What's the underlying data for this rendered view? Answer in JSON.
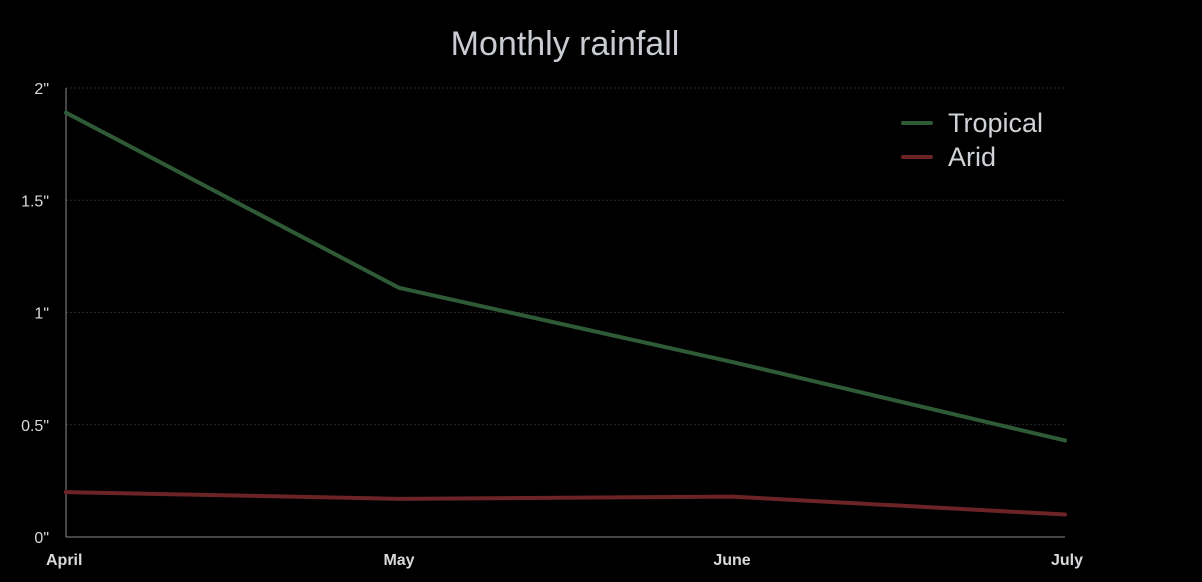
{
  "chart_data": {
    "type": "line",
    "title": "Monthly rainfall",
    "x": [
      "April",
      "May",
      "June",
      "July"
    ],
    "y_ticks": [
      {
        "value": 0,
        "label": "0\""
      },
      {
        "value": 0.5,
        "label": "0.5\""
      },
      {
        "value": 1,
        "label": "1\""
      },
      {
        "value": 1.5,
        "label": "1.5\""
      },
      {
        "value": 2,
        "label": "2\""
      }
    ],
    "ylim": [
      0,
      2
    ],
    "grid": true,
    "legend_position": "top-right",
    "series": [
      {
        "name": "Tropical",
        "color": "#2f5a36",
        "values": [
          1.89,
          1.11,
          0.78,
          0.43
        ]
      },
      {
        "name": "Arid",
        "color": "#6b2326",
        "values": [
          0.2,
          0.17,
          0.18,
          0.1
        ]
      }
    ]
  }
}
